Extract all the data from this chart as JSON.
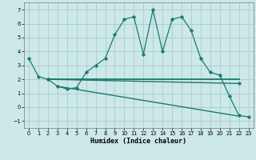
{
  "xlabel": "Humidex (Indice chaleur)",
  "background_color": "#cce8e8",
  "grid_color": "#aacccc",
  "line_color": "#1a7a6e",
  "xlim": [
    -0.5,
    23.5
  ],
  "ylim": [
    -1.5,
    7.5
  ],
  "xticks": [
    0,
    1,
    2,
    3,
    4,
    5,
    6,
    7,
    8,
    9,
    10,
    11,
    12,
    13,
    14,
    15,
    16,
    17,
    18,
    19,
    20,
    21,
    22,
    23
  ],
  "yticks": [
    -1,
    0,
    1,
    2,
    3,
    4,
    5,
    6,
    7
  ],
  "line1_x": [
    0,
    1,
    2,
    3,
    4,
    5,
    6,
    7,
    8,
    9,
    10,
    11,
    12,
    13,
    14,
    15,
    16,
    17,
    18,
    19,
    20,
    21,
    22,
    23
  ],
  "line1_y": [
    3.5,
    2.2,
    2.0,
    1.5,
    1.3,
    1.4,
    2.5,
    3.0,
    3.5,
    5.2,
    6.3,
    6.5,
    3.8,
    7.0,
    4.0,
    6.3,
    6.5,
    5.5,
    3.5,
    2.5,
    2.3,
    0.8,
    -0.6,
    -0.7
  ],
  "line2_x": [
    2,
    22
  ],
  "line2_y": [
    2.0,
    2.0
  ],
  "line3_x": [
    2,
    22
  ],
  "line3_y": [
    2.0,
    1.7
  ],
  "line4_x": [
    3,
    22
  ],
  "line4_y": [
    1.5,
    -0.65
  ]
}
